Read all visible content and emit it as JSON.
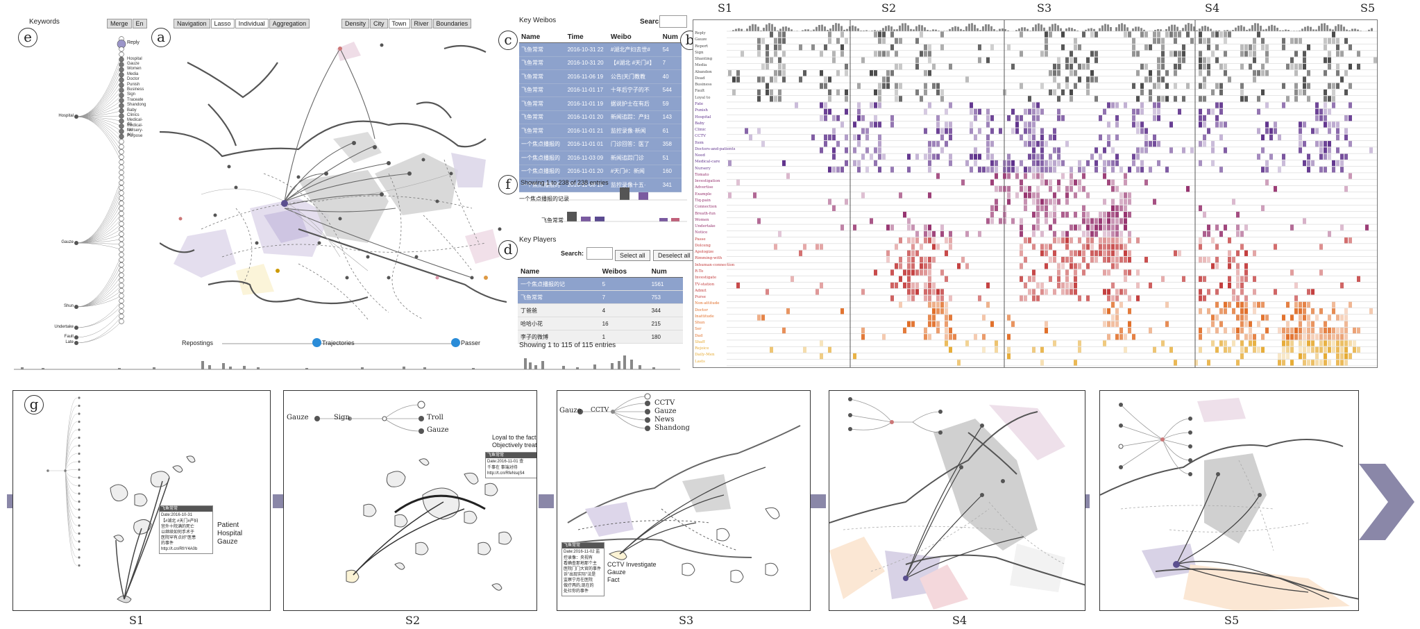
{
  "labels": {
    "e": "e",
    "a": "a",
    "c": "c",
    "b": "b",
    "f": "f",
    "d": "d",
    "g": "g"
  },
  "keywords_panel": {
    "title": "Keywords",
    "merge_label": "Merge",
    "lang_label": "En",
    "top_nodes": [
      "Reply"
    ],
    "hospital_children": [
      "Hospital",
      "Gauze",
      "Women",
      "Media",
      "Doctor",
      "Punish",
      "Business",
      "Sign",
      "Traceate",
      "Shandong",
      "Baby",
      "Clinics",
      "Medical-dis",
      "Medical-car",
      "Nursery-acc",
      "Purpose"
    ],
    "groups": [
      "Hospital",
      "Gauze",
      "Shun",
      "Undertake",
      "Fault",
      "Late"
    ]
  },
  "map_panel": {
    "mode_buttons": [
      "Navigation",
      "Lasso",
      "Individual",
      "Aggregation"
    ],
    "layer_buttons": [
      "Density",
      "City",
      "Town",
      "River",
      "Boundaries"
    ],
    "slider_left": "Repostings",
    "slider_mid": "Trajectories",
    "slider_right": "Passer"
  },
  "weibo_panel": {
    "title": "Key Weibos",
    "search_label": "Search:",
    "columns": [
      "Name",
      "Time",
      "Weibo",
      "Num"
    ],
    "rows": [
      {
        "name": "飞鱼常常",
        "time": "2016-10-31 22",
        "weibo": "#湖北产妇去世#",
        "num": "54"
      },
      {
        "name": "飞鱼常常",
        "time": "2016-10-31 20",
        "weibo": "【#湖北 #天门#】",
        "num": "7"
      },
      {
        "name": "飞鱼常常",
        "time": "2016-11-06 19",
        "weibo": "公告|天门教教",
        "num": "40"
      },
      {
        "name": "飞鱼常常",
        "time": "2016-11-01 17",
        "weibo": "十年后宁子的不",
        "num": "544"
      },
      {
        "name": "飞鱼常常",
        "time": "2016-11-01 19",
        "weibo": "据说护士在有后",
        "num": "59"
      },
      {
        "name": "飞鱼常常",
        "time": "2016-11-01 20",
        "weibo": "新闻追踪：产妇",
        "num": "143"
      },
      {
        "name": "飞鱼常常",
        "time": "2016-11-01 21",
        "weibo": "监控录像·新闻",
        "num": "61"
      },
      {
        "name": "一个焦点播报的",
        "time": "2016-11-01 01",
        "weibo": "门诊回答：医了",
        "num": "358"
      },
      {
        "name": "一个焦点播报的",
        "time": "2016-11-03 09",
        "weibo": "新闻追踪门诊",
        "num": "51"
      },
      {
        "name": "一个焦点播报的",
        "time": "2016-11-01 20",
        "weibo": "#天门#：新闻",
        "num": "160"
      },
      {
        "name": "一个焦点播报的",
        "time": "2016-11-08 15",
        "weibo": "监控录像十五·",
        "num": "341"
      }
    ],
    "showing": "Showing 1 to 238 of 238 entries"
  },
  "bar_panel": {
    "row_labels": [
      "一个焦点播报的记录",
      "飞鱼常常"
    ]
  },
  "players_panel": {
    "title": "Key Players",
    "search_label": "Search:",
    "select_all": "Select all",
    "deselect_all": "Deselect all",
    "columns": [
      "Name",
      "Weibos",
      "Num"
    ],
    "rows": [
      {
        "name": "一个焦点播报的记",
        "weibos": "5",
        "num": "1561",
        "sel": true
      },
      {
        "name": "飞鱼常常",
        "weibos": "7",
        "num": "753",
        "sel": true
      },
      {
        "name": "丁爸爸",
        "weibos": "4",
        "num": "344",
        "sel": false
      },
      {
        "name": "哈哈小花",
        "weibos": "16",
        "num": "215",
        "sel": false
      },
      {
        "name": "李子的微博",
        "weibos": "1",
        "num": "180",
        "sel": false
      }
    ],
    "showing": "Showing 1 to 115 of 115 entries"
  },
  "heatmap": {
    "stage_labels": [
      "S1",
      "S2",
      "S3",
      "S4",
      "S5"
    ],
    "row_labels": [
      "Reply",
      "Gauze",
      "Report",
      "Sign",
      "Shanting",
      "Media",
      "Abandon",
      "Dead",
      "Business",
      "Fault",
      "Loyal to",
      "Fate",
      "Punish",
      "Hospital",
      "Baby",
      "Clinic",
      "CCTV",
      "Item",
      "Doctors-and-patients",
      "Need",
      "Medical-care",
      "Nursery",
      "Tomato",
      "Investigation",
      "Advertise",
      "Example",
      "Tiq-pain",
      "Connection",
      "Breath-fun",
      "Women",
      "Undertake",
      "Notice",
      "Passe",
      "Dolceng",
      "Apologize",
      "Rimming-with",
      "Inhuman-connection",
      "R-To",
      "Investigate",
      "TV-station",
      "Admit",
      "Purse",
      "Non-attitude",
      "Doctor",
      "Inattitude",
      "Shun",
      "Ser",
      "Dad",
      "Shaff",
      "Rejoice",
      "Daily-Men",
      "Lasts"
    ]
  },
  "story_panels": [
    {
      "label": "S1",
      "tooltip_title": "飞鱼常常",
      "tooltip_date": "Date:2016-10-31",
      "tooltip_lines": [
        "【#湖北 #天门#产妇",
        "宫外十院满的死亡",
        "以继续如何手术于",
        "医院罕有点好\"医患",
        "的事件",
        "http://t.cn/RfrY4A0b"
      ],
      "callout": [
        "Patient",
        "Hospital",
        "Gauze"
      ]
    },
    {
      "label": "S2",
      "keywords": [
        "Gauze",
        "Sign",
        "Troll",
        "Gauze"
      ],
      "tooltip_title": "飞鱼常常",
      "tooltip_date": "Date:2016-11-01 查",
      "tooltip_lines": [
        "千事在 事端对待",
        "http://t.cn/RfeNsqS4"
      ],
      "callout": [
        "Loyal to the fact",
        "Objectively treated"
      ]
    },
    {
      "label": "S3",
      "keywords": [
        "Gauze",
        "CCTV",
        "CCTV",
        "Gauze",
        "News",
        "Shandong"
      ],
      "tooltip_title": "飞鱼常常",
      "tooltip_date": "Date:2016-11-02 监",
      "tooltip_lines": [
        "控录像：央视有",
        "看确查那地那个主",
        "医院门门大官的事件",
        "诉\"出现实际\"法是",
        "监察宁月在医院",
        "做疗两的,现在的",
        "处社你的事件"
      ],
      "callout": [
        "CCTV Investigate",
        "Gauze",
        "Fact"
      ]
    },
    {
      "label": "S4"
    },
    {
      "label": "S5"
    }
  ]
}
